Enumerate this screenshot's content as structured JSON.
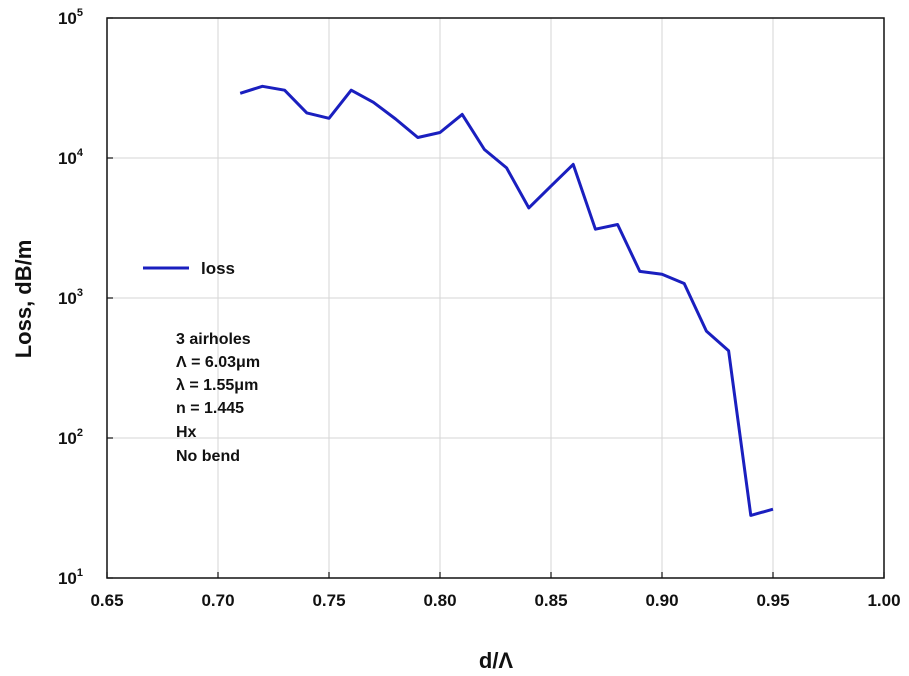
{
  "chart_data": {
    "type": "line",
    "xlabel": "d/Λ",
    "ylabel": "Loss, dB/m",
    "xlim": [
      0.65,
      1.0
    ],
    "ylim": [
      10,
      100000
    ],
    "yscale": "log",
    "grid": true,
    "x_ticks": [
      "0.65",
      "0.70",
      "0.75",
      "0.80",
      "0.85",
      "0.90",
      "0.95",
      "1.00"
    ],
    "y_ticks": [
      {
        "base": "10",
        "exp": "1",
        "value": 10
      },
      {
        "base": "10",
        "exp": "2",
        "value": 100
      },
      {
        "base": "10",
        "exp": "3",
        "value": 1000
      },
      {
        "base": "10",
        "exp": "4",
        "value": 10000
      },
      {
        "base": "10",
        "exp": "5",
        "value": 100000
      }
    ],
    "legend": {
      "placement": "left",
      "entries": [
        "loss"
      ]
    },
    "series": [
      {
        "name": "loss",
        "color": "#1a1fbf",
        "x": [
          0.71,
          0.72,
          0.73,
          0.74,
          0.75,
          0.76,
          0.77,
          0.78,
          0.79,
          0.8,
          0.81,
          0.82,
          0.83,
          0.84,
          0.85,
          0.86,
          0.87,
          0.88,
          0.89,
          0.9,
          0.91,
          0.92,
          0.93,
          0.94,
          0.95
        ],
        "y": [
          29000,
          32500,
          30500,
          21000,
          19200,
          30500,
          25000,
          19000,
          14000,
          15200,
          20500,
          11500,
          8500,
          4400,
          6300,
          9000,
          3100,
          3350,
          1550,
          1480,
          1270,
          580,
          420,
          28,
          31
        ]
      }
    ],
    "annotations": [
      "3 airholes",
      "Λ = 6.03μm",
      "λ = 1.55μm",
      "n = 1.445",
      "Hx",
      "No bend"
    ]
  }
}
